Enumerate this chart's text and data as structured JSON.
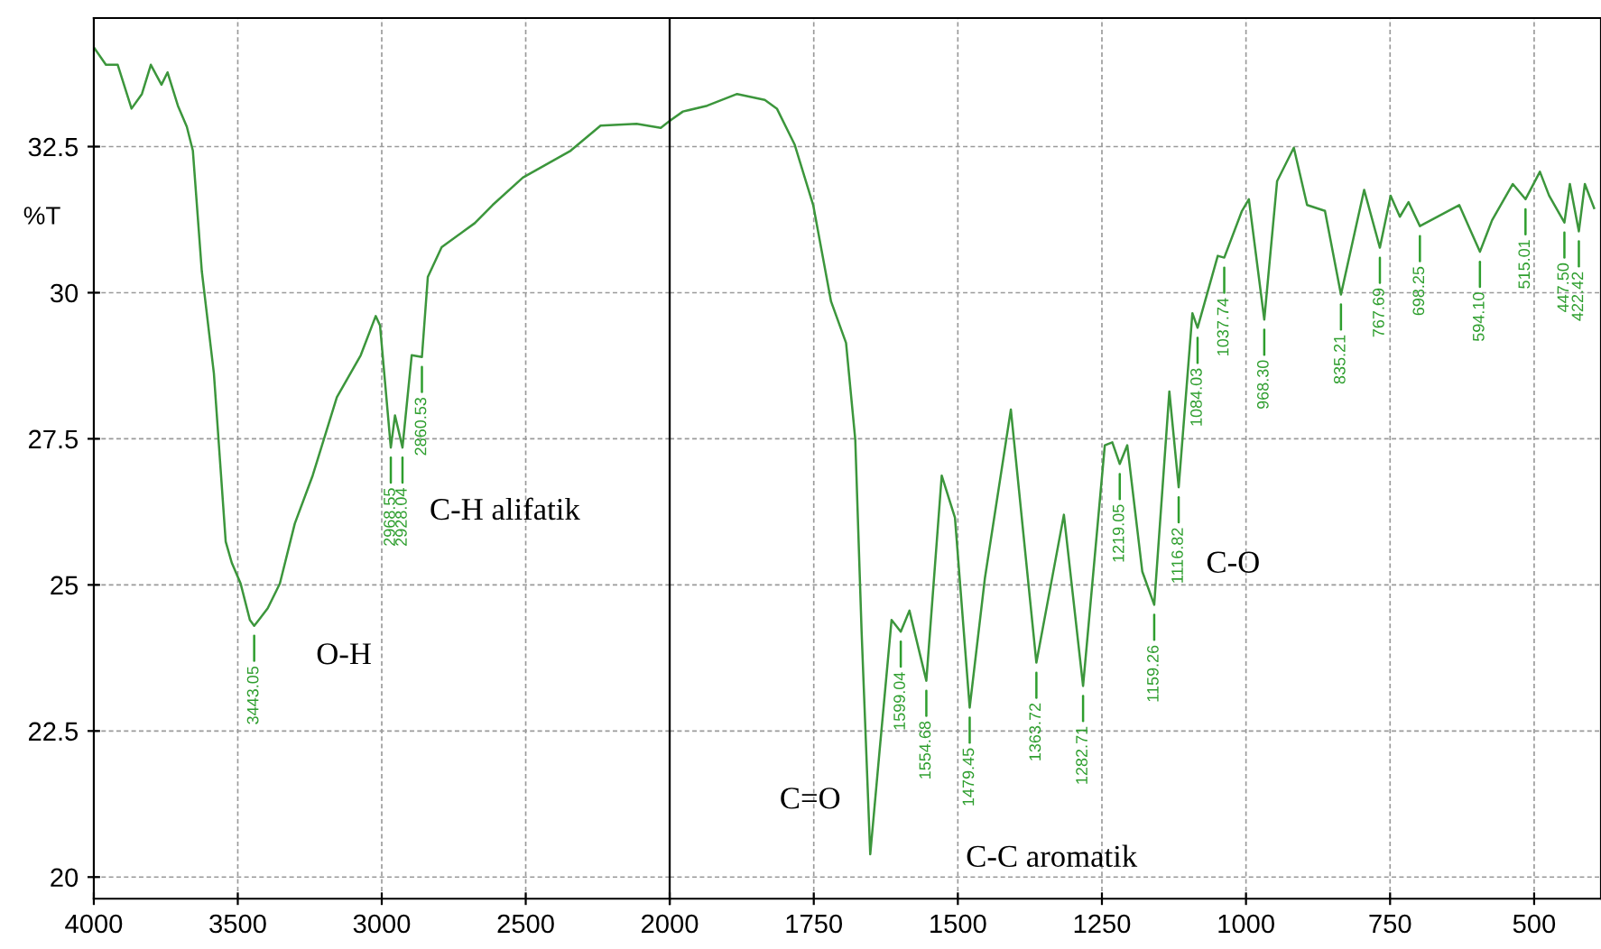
{
  "chart_data": [
    {
      "type": "line",
      "ylabel": "%T",
      "x": [
        4000,
        3958,
        3917,
        3869,
        3833,
        3802,
        3765,
        3744,
        3708,
        3677,
        3656,
        3625,
        3583,
        3542,
        3521,
        3490,
        3458,
        3443.05,
        3427,
        3396,
        3354,
        3302,
        3240,
        3156,
        3073,
        3021,
        3006,
        2968.55,
        2954,
        2928.04,
        2896,
        2860.53,
        2840,
        2792,
        2677,
        2615,
        2510,
        2344,
        2240,
        2115,
        2031,
        2000
      ],
      "series": [
        {
          "color": "#3c963c",
          "values": [
            34.2,
            33.9,
            33.9,
            33.15,
            33.4,
            33.9,
            33.56,
            33.77,
            33.2,
            32.84,
            32.43,
            30.37,
            28.62,
            25.74,
            25.38,
            25.02,
            24.4,
            24.3,
            24.4,
            24.6,
            25.02,
            26.05,
            26.87,
            28.21,
            28.93,
            29.6,
            29.44,
            27.35,
            27.9,
            27.35,
            28.93,
            28.9,
            30.27,
            30.78,
            31.19,
            31.5,
            31.97,
            32.43,
            32.86,
            32.89,
            32.82,
            32.94
          ]
        }
      ],
      "xlim": [
        4000,
        2000
      ],
      "ylim": [
        19.63,
        34.7
      ],
      "xticks": [
        4000,
        3500,
        3000,
        2500,
        {
          "value": 2000,
          "label": null
        }
      ],
      "yticks": [
        20,
        22.5,
        25,
        27.5,
        30,
        32.5
      ],
      "grid": true,
      "annotations": [
        {
          "text": "3443.05",
          "x": 3443.05,
          "y": 24.3
        },
        {
          "text": "2968.55",
          "x": 2968.55,
          "y": 27.35
        },
        {
          "text": "2928.04",
          "x": 2928.04,
          "y": 27.35
        },
        {
          "text": "2860.53",
          "x": 2860.53,
          "y": 28.9
        },
        "O-H",
        "C-H alifatik"
      ]
    },
    {
      "type": "line",
      "x": [
        2000,
        1977,
        1935,
        1883,
        1835,
        1814,
        1783,
        1751,
        1720,
        1694,
        1678,
        1667,
        1652,
        1636,
        1615,
        1599.04,
        1584,
        1554.68,
        1528,
        1505,
        1479.45,
        1453,
        1408,
        1363.72,
        1316,
        1282.71,
        1245,
        1232,
        1219.05,
        1206,
        1180,
        1159.26,
        1133,
        1116.82,
        1093,
        1084.03,
        1049,
        1037.74,
        1007,
        995,
        968.3,
        946,
        917,
        894,
        863,
        835.21,
        795,
        767.69,
        749,
        733,
        718,
        698.25,
        630,
        594.1,
        573,
        537,
        515.01,
        490,
        474,
        447.5,
        438,
        422.42,
        412,
        396
      ],
      "series": [
        {
          "color": "#3c963c",
          "values": [
            32.94,
            33.1,
            33.2,
            33.4,
            33.3,
            33.15,
            32.53,
            31.5,
            29.85,
            29.14,
            27.49,
            24.2,
            20.39,
            22.14,
            24.4,
            24.2,
            24.56,
            23.36,
            26.87,
            26.15,
            22.9,
            25.12,
            28.0,
            23.67,
            26.2,
            23.27,
            27.39,
            27.44,
            27.07,
            27.39,
            25.23,
            24.66,
            28.31,
            26.67,
            29.65,
            29.4,
            30.63,
            30.6,
            31.4,
            31.6,
            29.54,
            31.91,
            32.48,
            31.5,
            31.4,
            29.97,
            31.76,
            30.77,
            31.66,
            31.3,
            31.55,
            31.14,
            31.5,
            30.7,
            31.24,
            31.86,
            31.6,
            32.07,
            31.66,
            31.2,
            31.86,
            31.05,
            31.86,
            31.45
          ]
        }
      ],
      "xlim": [
        2000,
        384
      ],
      "ylim": [
        19.63,
        34.7
      ],
      "xticks": [
        2000,
        1750,
        1500,
        1250,
        1000,
        750,
        500
      ],
      "yticks": [
        20,
        22.5,
        25,
        27.5,
        30,
        32.5
      ],
      "tick_labels": "x",
      "grid": true,
      "annotations": [
        {
          "text": "1599.04",
          "x": 1599.04,
          "y": 24.2
        },
        {
          "text": "1554.68",
          "x": 1554.68,
          "y": 23.36
        },
        {
          "text": "1479.45",
          "x": 1479.45,
          "y": 22.9
        },
        {
          "text": "1363.72",
          "x": 1363.72,
          "y": 23.67
        },
        {
          "text": "1282.71",
          "x": 1282.71,
          "y": 23.27
        },
        {
          "text": "1219.05",
          "x": 1219.05,
          "y": 27.07
        },
        {
          "text": "1159.26",
          "x": 1159.26,
          "y": 24.66
        },
        {
          "text": "1116.82",
          "x": 1116.82,
          "y": 26.67
        },
        {
          "text": "1084.03",
          "x": 1084.03,
          "y": 29.4
        },
        {
          "text": "1037.74",
          "x": 1037.74,
          "y": 30.6
        },
        {
          "text": "968.30",
          "x": 968.3,
          "y": 29.54
        },
        {
          "text": "835.21",
          "x": 835.21,
          "y": 29.97
        },
        {
          "text": "767.69",
          "x": 767.69,
          "y": 30.77
        },
        {
          "text": "698.25",
          "x": 698.25,
          "y": 31.14
        },
        {
          "text": "594.10",
          "x": 594.1,
          "y": 30.7
        },
        {
          "text": "515.01",
          "x": 515.01,
          "y": 31.6
        },
        {
          "text": "447.50",
          "x": 447.5,
          "y": 31.2
        },
        {
          "text": "422.42",
          "x": 422.42,
          "y": 31.05
        },
        "C=O",
        "C-C aromatik",
        "C-O"
      ]
    }
  ]
}
